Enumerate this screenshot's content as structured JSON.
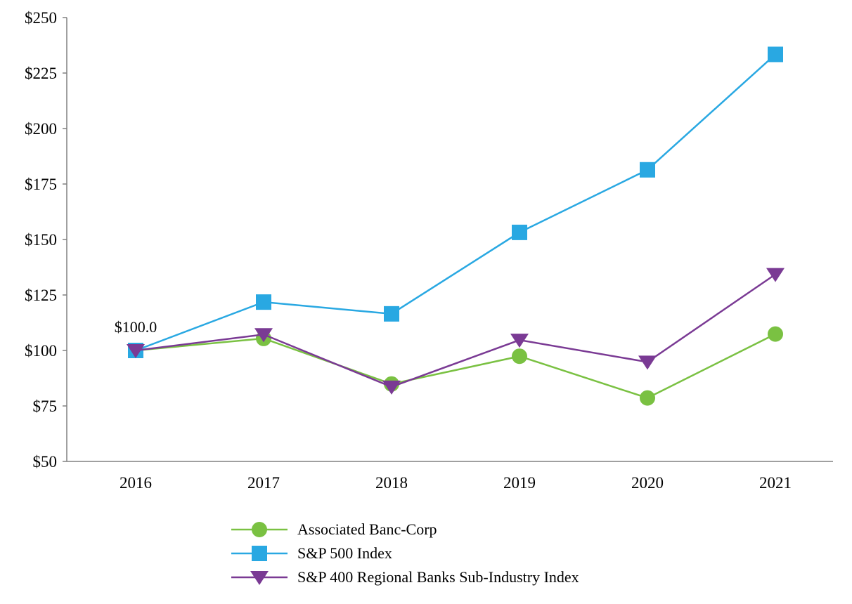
{
  "chart_data": {
    "type": "line",
    "title": "",
    "x": [
      "2016",
      "2017",
      "2018",
      "2019",
      "2020",
      "2021"
    ],
    "series": [
      {
        "name": "Associated Banc-Corp",
        "marker": "circle",
        "color": "#7AC142",
        "values": [
          100.0,
          105.4,
          84.9,
          97.4,
          78.6,
          107.4
        ]
      },
      {
        "name": "S&P 500 Index",
        "marker": "square",
        "color": "#29A8E2",
        "values": [
          100.0,
          121.8,
          116.5,
          153.2,
          181.4,
          233.4
        ]
      },
      {
        "name": "S&P 400 Regional Banks Sub-Industry Index",
        "marker": "triangle-down",
        "color": "#7A3A94",
        "values": [
          100.0,
          107.2,
          83.6,
          104.7,
          94.8,
          134.3
        ]
      }
    ],
    "xlabel": "",
    "ylabel": "",
    "ylim": [
      50,
      250
    ],
    "ytick_step": 25,
    "ytick_prefix": "$",
    "ytick_labels": [
      "$50",
      "$75",
      "$100",
      "$125",
      "$150",
      "$175",
      "$200",
      "$225",
      "$250"
    ],
    "annotation": {
      "text": "$100.0",
      "x_index": 0,
      "y": 100,
      "dy": -26
    },
    "grid": false,
    "legend_position": "bottom-left",
    "axis_color": "#808080",
    "text_color": "#000000",
    "background": "#FFFFFF"
  }
}
